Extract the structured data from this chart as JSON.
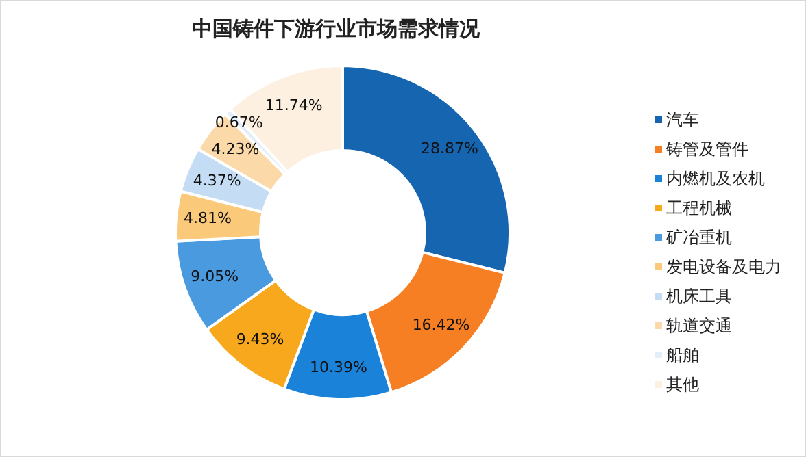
{
  "chart_data": {
    "type": "donut",
    "title": "中国铸件下游行业市场需求情况",
    "categories": [
      "汽车",
      "铸管及管件",
      "内燃机及农机",
      "工程机械",
      "矿冶重机",
      "发电设备及电力",
      "机床工具",
      "轨道交通",
      "船舶",
      "其他"
    ],
    "values": [
      28.87,
      16.42,
      10.39,
      9.43,
      9.05,
      4.81,
      4.37,
      4.23,
      0.67,
      11.74
    ],
    "value_labels": [
      "28.87%",
      "16.42%",
      "10.39%",
      "9.43%",
      "9.05%",
      "4.81%",
      "4.37%",
      "4.23%",
      "0.67%",
      "11.74%"
    ],
    "colors": [
      "#1565b0",
      "#f57f22",
      "#1a82d8",
      "#f7a81c",
      "#4a9ae0",
      "#fbc97a",
      "#c4ddf4",
      "#fbd9a8",
      "#e4eef8",
      "#fdf0e0"
    ],
    "legend": "right"
  }
}
